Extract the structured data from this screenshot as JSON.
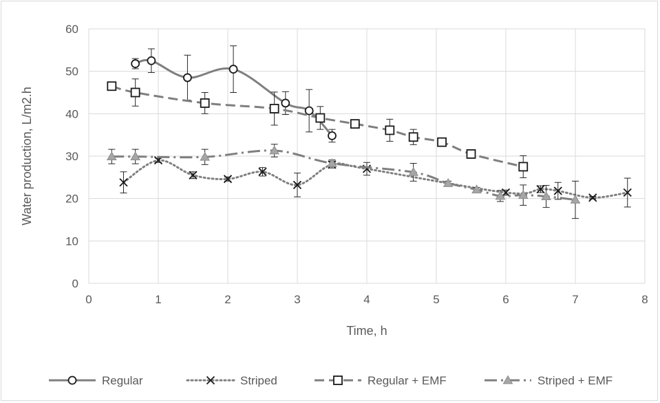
{
  "chart_data": {
    "type": "scatter",
    "title": "",
    "xlabel": "Time, h",
    "ylabel": "Water production, L/m2.h",
    "xlim": [
      0,
      8
    ],
    "ylim": [
      0,
      60
    ],
    "x_ticks": [
      "0",
      "1",
      "2",
      "3",
      "4",
      "5",
      "6",
      "7",
      "8"
    ],
    "y_ticks": [
      "0",
      "10",
      "20",
      "30",
      "40",
      "50",
      "60"
    ],
    "grid": true,
    "legend_position": "bottom",
    "series": [
      {
        "name": "Regular",
        "marker": "circle",
        "line": "solid",
        "color": "#7f7f7f",
        "x": [
          0.67,
          0.9,
          1.42,
          2.08,
          2.83,
          3.17,
          3.5
        ],
        "y": [
          51.8,
          52.5,
          48.5,
          50.5,
          42.5,
          40.7,
          34.8
        ],
        "err": [
          1.2,
          2.8,
          5.3,
          5.5,
          2.7,
          5.0,
          1.5
        ]
      },
      {
        "name": "Striped",
        "marker": "x",
        "line": "dotted",
        "color": "#7f7f7f",
        "x": [
          0.5,
          1.0,
          1.5,
          2.0,
          2.5,
          3.0,
          3.5,
          4.0,
          6.0,
          6.5,
          6.75,
          7.25,
          7.75
        ],
        "y": [
          23.8,
          29.0,
          25.5,
          24.6,
          26.3,
          23.2,
          28.0,
          27.0,
          21.4,
          22.2,
          21.8,
          20.2,
          21.4
        ],
        "err": [
          2.5,
          0.5,
          0.8,
          0.5,
          1.0,
          2.8,
          0.8,
          1.5,
          0.6,
          0.8,
          2.0,
          0.3,
          3.4
        ]
      },
      {
        "name": "Regular + EMF",
        "marker": "square",
        "line": "dashed",
        "color": "#7f7f7f",
        "x": [
          0.33,
          0.67,
          1.67,
          2.67,
          3.33,
          3.83,
          4.33,
          4.67,
          5.08,
          5.5,
          6.25
        ],
        "y": [
          46.5,
          45.0,
          42.5,
          41.2,
          39.0,
          37.6,
          36.1,
          34.5,
          33.3,
          30.5,
          27.5
        ],
        "err": [
          0.5,
          3.2,
          2.5,
          3.9,
          2.7,
          0.6,
          2.6,
          1.8,
          0.7,
          1.0,
          2.6
        ]
      },
      {
        "name": "Striped + EMF",
        "marker": "triangle",
        "line": "dashdot",
        "color": "#7f7f7f",
        "x": [
          0.33,
          0.67,
          1.67,
          2.67,
          3.5,
          4.67,
          5.17,
          5.58,
          5.92,
          6.25,
          6.58,
          7.0
        ],
        "y": [
          29.9,
          29.9,
          29.8,
          31.3,
          28.3,
          26.2,
          23.6,
          22.1,
          20.6,
          20.8,
          20.5,
          19.7
        ],
        "err": [
          1.7,
          1.7,
          1.8,
          1.5,
          0.8,
          2.1,
          0.5,
          0.5,
          1.3,
          2.4,
          2.6,
          4.4
        ]
      }
    ]
  }
}
